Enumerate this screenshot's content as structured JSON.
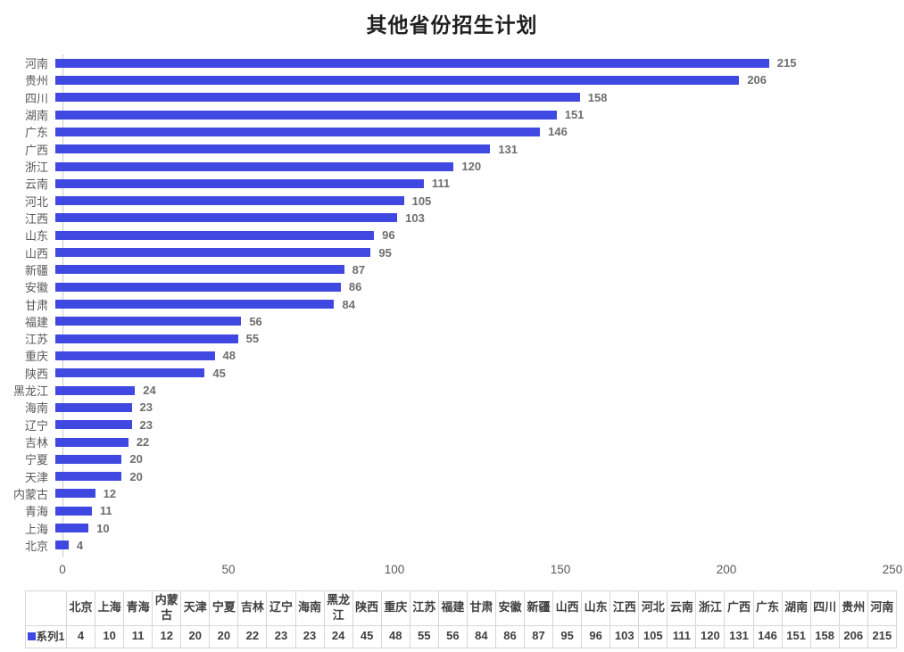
{
  "title": "其他省份招生计划",
  "colors": {
    "bar": "#3f48e0",
    "category_label": "#595959",
    "value_label": "#6e6e6e",
    "axis_line": "#c9c9c9",
    "table_border": "#d6d6d6",
    "table_text": "#3f3f3f"
  },
  "chart_data": {
    "type": "bar",
    "orientation": "horizontal",
    "title": "其他省份招生计划",
    "series_name": "系列1",
    "categories": [
      "河南",
      "贵州",
      "四川",
      "湖南",
      "广东",
      "广西",
      "浙江",
      "云南",
      "河北",
      "江西",
      "山东",
      "山西",
      "新疆",
      "安徽",
      "甘肃",
      "福建",
      "江苏",
      "重庆",
      "陕西",
      "黑龙江",
      "海南",
      "辽宁",
      "吉林",
      "宁夏",
      "天津",
      "内蒙古",
      "青海",
      "上海",
      "北京"
    ],
    "values": [
      215,
      206,
      158,
      151,
      146,
      131,
      120,
      111,
      105,
      103,
      96,
      95,
      87,
      86,
      84,
      56,
      55,
      48,
      45,
      24,
      23,
      23,
      22,
      20,
      20,
      12,
      11,
      10,
      4
    ],
    "xlabel": "",
    "ylabel": "",
    "xlim": [
      0,
      250
    ],
    "x_ticks": [
      0,
      50,
      100,
      150,
      200,
      250
    ],
    "data_labels": true,
    "grid": false,
    "legend_position": "table-bottom"
  },
  "table": {
    "row_header": "系列1",
    "columns": [
      "北京",
      "上海",
      "青海",
      "内蒙古",
      "天津",
      "宁夏",
      "吉林",
      "辽宁",
      "海南",
      "黑龙江",
      "陕西",
      "重庆",
      "江苏",
      "福建",
      "甘肃",
      "安徽",
      "新疆",
      "山西",
      "山东",
      "江西",
      "河北",
      "云南",
      "浙江",
      "广西",
      "广东",
      "湖南",
      "四川",
      "贵州",
      "河南"
    ],
    "values": [
      4,
      10,
      11,
      12,
      20,
      20,
      22,
      23,
      23,
      24,
      45,
      48,
      55,
      56,
      84,
      86,
      87,
      95,
      96,
      103,
      105,
      111,
      120,
      131,
      146,
      151,
      158,
      206,
      215
    ]
  }
}
